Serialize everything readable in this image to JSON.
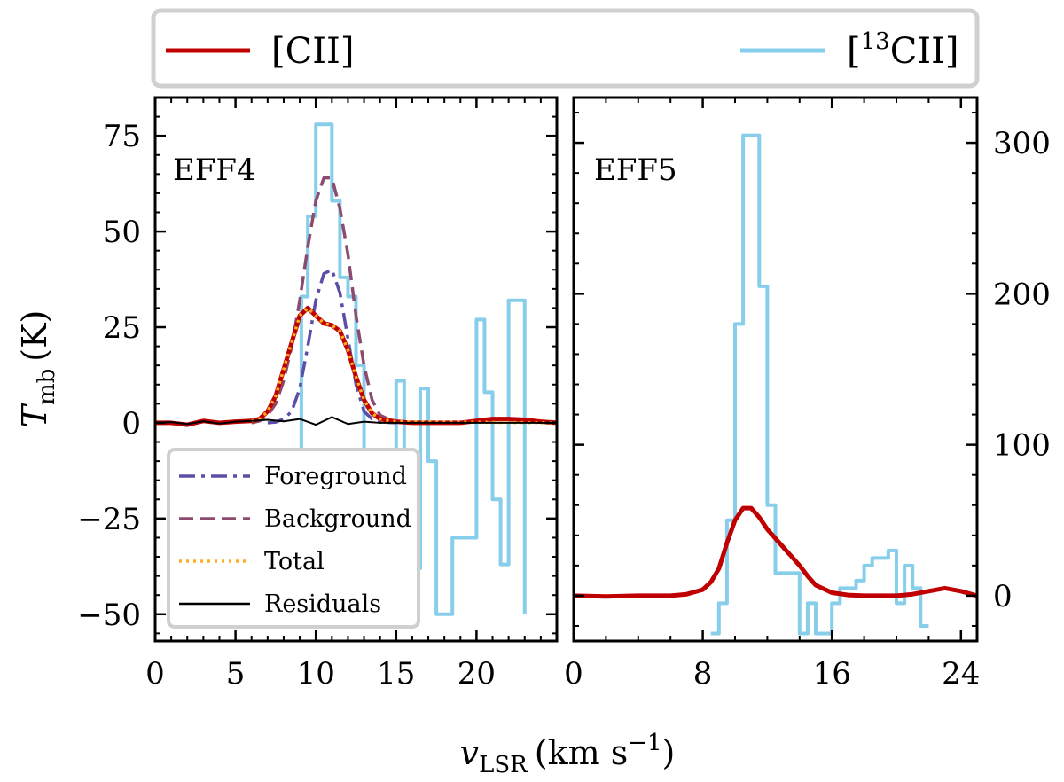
{
  "legend_top": {
    "entries": [
      {
        "label_main": "[CII]",
        "color": "#c00000"
      },
      {
        "label_pre": "[",
        "label_sup": "13",
        "label_main": "CII]",
        "color": "#87ceeb"
      }
    ]
  },
  "axis_labels": {
    "ylabel_main": "T",
    "ylabel_sub": "mb",
    "ylabel_unit": "(K)",
    "xlabel_main": "v",
    "xlabel_sub": "LSR",
    "xlabel_unit_pre": "(km s",
    "xlabel_unit_sup": "−1",
    "xlabel_unit_post": ")"
  },
  "chart_data": [
    {
      "type": "line",
      "panel": "EFF4",
      "title": "EFF4",
      "xlim": [
        0,
        25
      ],
      "ylim": [
        -57,
        85
      ],
      "xticks": [
        0,
        5,
        10,
        15,
        20
      ],
      "xtick_labels": [
        "0",
        "5",
        "10",
        "15",
        "20"
      ],
      "yticks": [
        -50,
        -25,
        0,
        25,
        50,
        75
      ],
      "ytick_labels": [
        "−50",
        "−25",
        "0",
        "25",
        "50",
        "75"
      ],
      "legend_position": "lower-left",
      "legend": [
        {
          "label": "Foreground",
          "color": "#5c4ea8",
          "style": "dashdot"
        },
        {
          "label": "Background",
          "color": "#8c4a6e",
          "style": "dashed"
        },
        {
          "label": "Total",
          "color": "#ffb020",
          "style": "dotted"
        },
        {
          "label": "Residuals",
          "color": "#000000",
          "style": "solid"
        }
      ],
      "series": [
        {
          "name": "[CII]",
          "color": "#c00000",
          "x": [
            0,
            1,
            2,
            3,
            4,
            5,
            6,
            6.5,
            7,
            7.5,
            8,
            8.5,
            9,
            9.5,
            10,
            10.5,
            11,
            11.5,
            12,
            12.5,
            13,
            13.5,
            14,
            15,
            16,
            17,
            18,
            19,
            20,
            21,
            22,
            23,
            24,
            25
          ],
          "y": [
            0,
            0,
            -0.5,
            0.5,
            0,
            0.3,
            0.5,
            1,
            3,
            7,
            14,
            21,
            28,
            30,
            28,
            26,
            25.5,
            24,
            19,
            12,
            6,
            2.5,
            1,
            0.3,
            0,
            0,
            0,
            0,
            0.5,
            1,
            1,
            0.8,
            0.3,
            0
          ]
        },
        {
          "name": "Foreground",
          "color": "#5c4ea8",
          "x": [
            7,
            7.5,
            8,
            8.5,
            9,
            9.5,
            10,
            10.5,
            11,
            11.5,
            12,
            12.5,
            13,
            13.5,
            14,
            15
          ],
          "y": [
            0,
            0.2,
            1,
            3,
            9,
            20,
            32,
            39,
            40,
            34,
            22,
            10,
            3,
            1,
            0.2,
            0
          ]
        },
        {
          "name": "Background",
          "color": "#8c4a6e",
          "x": [
            6,
            6.5,
            7,
            7.5,
            8,
            8.5,
            9,
            9.5,
            10,
            10.5,
            11,
            11.5,
            12,
            12.5,
            13,
            13.5,
            14,
            15
          ],
          "y": [
            0,
            0.5,
            2,
            5,
            11,
            20,
            32,
            46,
            58,
            64,
            64,
            56,
            44,
            28,
            15,
            6,
            2,
            0
          ]
        },
        {
          "name": "Total",
          "color": "#ffb020",
          "x": [
            6,
            6.5,
            7,
            7.5,
            8,
            8.5,
            9,
            9.5,
            10,
            10.5,
            11,
            11.5,
            12,
            12.5,
            13,
            13.5,
            14,
            15,
            25
          ],
          "y": [
            0.5,
            1,
            3,
            7,
            14,
            21,
            28,
            30,
            28,
            26,
            25.5,
            24,
            19,
            12,
            6,
            2.5,
            1,
            0.3,
            0
          ]
        },
        {
          "name": "Residuals",
          "color": "#000000",
          "x": [
            0,
            1,
            2,
            3,
            4,
            5,
            6,
            7,
            8,
            9,
            10,
            11,
            12,
            13,
            14,
            15,
            16,
            17,
            18,
            19,
            20,
            21,
            22,
            23,
            24,
            25
          ],
          "y": [
            0,
            0.2,
            -0.3,
            0.4,
            -0.2,
            0.3,
            0.5,
            0.8,
            0.4,
            1,
            -0.5,
            1.5,
            -0.3,
            0.3,
            0,
            0,
            0,
            0,
            0,
            0,
            0,
            0,
            0,
            0,
            0,
            0
          ]
        },
        {
          "name": "[13CII]",
          "color": "#87ceeb",
          "step": true,
          "x": [
            8.9,
            9.1,
            9.5,
            10,
            10.5,
            11,
            11.5,
            12,
            12.5,
            13,
            13.5,
            14,
            14.5,
            15,
            15.5,
            16,
            16.5,
            17,
            17.5,
            18,
            18.5,
            19,
            19.5,
            20,
            20.5,
            21,
            21.5,
            22,
            22.5,
            23
          ],
          "y": [
            -8,
            33,
            54,
            78,
            78,
            58,
            38,
            33,
            15,
            -15,
            -12,
            -28,
            -40,
            11,
            -15,
            -38,
            9,
            -10,
            -50,
            -50,
            -30,
            -30,
            -30,
            27,
            8,
            -20,
            -37,
            32,
            32,
            -50
          ]
        }
      ]
    },
    {
      "type": "line",
      "panel": "EFF5",
      "title": "EFF5",
      "xlim": [
        0,
        25
      ],
      "ylim": [
        -30,
        330
      ],
      "xticks": [
        0,
        8,
        16,
        24
      ],
      "xtick_labels": [
        "0",
        "8",
        "16",
        "24"
      ],
      "yticks": [
        0,
        100,
        200,
        300
      ],
      "ytick_labels": [
        "0",
        "100",
        "200",
        "300"
      ],
      "series": [
        {
          "name": "[CII]",
          "color": "#c00000",
          "x": [
            0,
            2,
            4,
            6,
            7,
            8,
            8.5,
            9,
            9.5,
            10,
            10.5,
            11,
            11.5,
            12,
            12.5,
            13,
            13.5,
            14,
            14.5,
            15,
            16,
            17,
            18,
            19,
            20,
            21,
            22,
            23,
            24,
            25
          ],
          "y": [
            0,
            -0.5,
            0,
            0,
            1,
            4,
            9,
            18,
            35,
            50,
            58,
            58,
            52,
            44,
            38,
            32,
            26,
            20,
            13,
            7,
            2,
            0.5,
            0,
            0,
            0,
            1,
            3,
            5,
            3,
            0
          ]
        },
        {
          "name": "[13CII]",
          "color": "#87ceeb",
          "step": true,
          "x": [
            8.5,
            9,
            9.5,
            10,
            10.5,
            11,
            11.5,
            12,
            12.5,
            13,
            13.5,
            14,
            14.5,
            15,
            15.5,
            16,
            16.5,
            17,
            17.5,
            18,
            18.5,
            19,
            19.5,
            20,
            20.5,
            21,
            21.5,
            22
          ],
          "y": [
            -25,
            -5,
            50,
            180,
            305,
            305,
            205,
            60,
            15,
            15,
            15,
            -25,
            -5,
            -25,
            -25,
            -5,
            5,
            5,
            10,
            20,
            25,
            25,
            30,
            -5,
            20,
            5,
            -20,
            -20
          ]
        }
      ]
    }
  ]
}
